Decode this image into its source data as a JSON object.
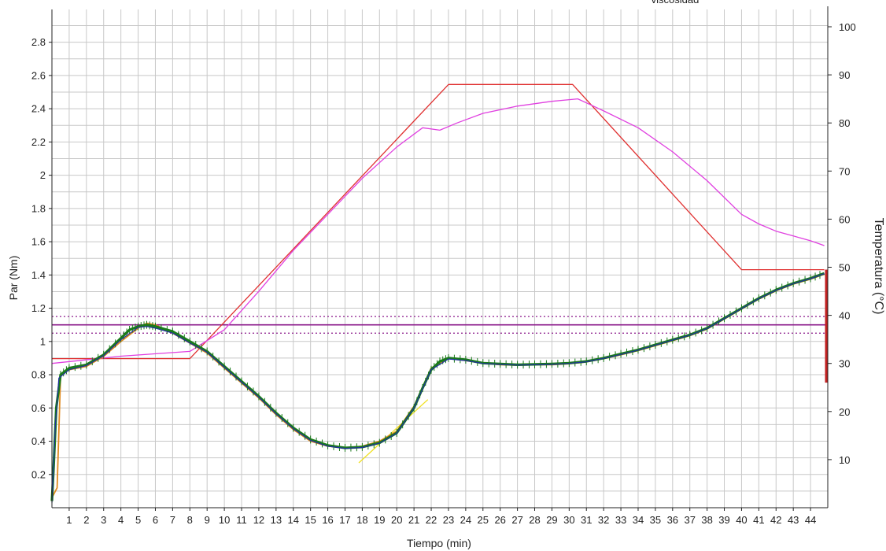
{
  "chart_data": {
    "type": "line",
    "top_label": "viscosidad",
    "xlabel": "Tiempo (min)",
    "ylabel_left": "Par (Nm)",
    "ylabel_right": "Temperatura  (°C)",
    "xlim": [
      0,
      45
    ],
    "ylim_left": [
      0,
      2.8
    ],
    "ylim_right": [
      0,
      104
    ],
    "grid": true,
    "x_ticks": [
      1,
      2,
      3,
      4,
      5,
      6,
      7,
      8,
      9,
      10,
      11,
      12,
      13,
      14,
      15,
      16,
      17,
      18,
      19,
      20,
      21,
      22,
      23,
      24,
      25,
      26,
      27,
      28,
      29,
      30,
      31,
      32,
      33,
      34,
      35,
      36,
      37,
      38,
      39,
      40,
      41,
      42,
      43,
      44
    ],
    "x_tick_labels": [
      "1",
      "2",
      "3",
      "4",
      "5",
      "6",
      "7",
      "8",
      "9",
      "10",
      "11",
      "12",
      "13",
      "14",
      "15",
      "16",
      "17",
      "18",
      "19",
      "20",
      "21",
      "22",
      "23",
      "24",
      "25",
      "26",
      "27",
      "28",
      "29",
      "30",
      "31",
      "32",
      "33",
      "34",
      "35",
      "36",
      "37",
      "38",
      "39",
      "40",
      "41",
      "42",
      "43",
      "44"
    ],
    "left_ticks": [
      0.2,
      0.4,
      0.6,
      0.8,
      1,
      1.2,
      1.4,
      1.6,
      1.8,
      2,
      2.2,
      2.4,
      2.6,
      2.8
    ],
    "left_tick_labels": [
      "0.2",
      "0.4",
      "0.6",
      "0.8",
      "1",
      "1.2",
      "1.4",
      "1.6",
      "1.8",
      "2",
      "2.2",
      "2.4",
      "2.6",
      "2.8"
    ],
    "right_ticks": [
      10,
      20,
      30,
      40,
      50,
      60,
      70,
      80,
      90,
      100
    ],
    "right_tick_labels": [
      "10",
      "20",
      "30",
      "40",
      "50",
      "60",
      "70",
      "80",
      "90",
      "100"
    ],
    "reference_lines": [
      {
        "axis": "left",
        "y": 1.1,
        "style": "solid",
        "color": "#8b1a8b"
      },
      {
        "axis": "left",
        "y": 1.15,
        "style": "dotted",
        "color": "#8b1a8b"
      },
      {
        "axis": "left",
        "y": 1.05,
        "style": "dotted",
        "color": "#8b1a8b"
      }
    ],
    "series": [
      {
        "key": "temp_setpoint",
        "axis": "right",
        "color": "#e03030",
        "points": [
          [
            0,
            31
          ],
          [
            8,
            31
          ],
          [
            23,
            88
          ],
          [
            30.2,
            88
          ],
          [
            40,
            49.5
          ],
          [
            44.8,
            49.5
          ]
        ]
      },
      {
        "key": "temp_measured",
        "axis": "right",
        "color": "#e040e0",
        "points": [
          [
            0,
            30
          ],
          [
            4,
            31.5
          ],
          [
            8,
            32.5
          ],
          [
            10,
            37
          ],
          [
            12,
            45
          ],
          [
            14,
            53.5
          ],
          [
            16,
            61
          ],
          [
            18,
            68.5
          ],
          [
            20,
            75
          ],
          [
            21.5,
            79
          ],
          [
            22.5,
            78.5
          ],
          [
            23.5,
            80
          ],
          [
            25,
            82
          ],
          [
            27,
            83.5
          ],
          [
            29,
            84.5
          ],
          [
            30.5,
            85
          ],
          [
            32,
            82.5
          ],
          [
            34,
            79
          ],
          [
            36,
            74
          ],
          [
            38,
            68
          ],
          [
            40,
            61
          ],
          [
            41,
            59
          ],
          [
            42,
            57.5
          ],
          [
            43,
            56.5
          ],
          [
            44,
            55.5
          ],
          [
            44.8,
            54.5
          ]
        ]
      },
      {
        "key": "torque_main",
        "axis": "left",
        "color": "#1a7a1a",
        "points": [
          [
            0,
            0.04
          ],
          [
            0.1,
            0.25
          ],
          [
            0.25,
            0.6
          ],
          [
            0.5,
            0.8
          ],
          [
            1,
            0.84
          ],
          [
            2,
            0.86
          ],
          [
            3,
            0.92
          ],
          [
            4,
            1.02
          ],
          [
            4.5,
            1.07
          ],
          [
            5,
            1.09
          ],
          [
            5.5,
            1.1
          ],
          [
            6,
            1.09
          ],
          [
            7,
            1.06
          ],
          [
            8,
            1.0
          ],
          [
            9,
            0.94
          ],
          [
            10,
            0.85
          ],
          [
            11,
            0.76
          ],
          [
            12,
            0.67
          ],
          [
            13,
            0.57
          ],
          [
            14,
            0.48
          ],
          [
            15,
            0.41
          ],
          [
            16,
            0.375
          ],
          [
            17,
            0.36
          ],
          [
            18,
            0.365
          ],
          [
            19,
            0.39
          ],
          [
            20,
            0.45
          ],
          [
            21,
            0.6
          ],
          [
            21.5,
            0.72
          ],
          [
            22,
            0.83
          ],
          [
            22.5,
            0.88
          ],
          [
            23,
            0.9
          ],
          [
            24,
            0.89
          ],
          [
            25,
            0.87
          ],
          [
            26,
            0.865
          ],
          [
            27,
            0.86
          ],
          [
            28,
            0.862
          ],
          [
            29,
            0.865
          ],
          [
            30,
            0.87
          ],
          [
            31,
            0.88
          ],
          [
            32,
            0.9
          ],
          [
            33,
            0.925
          ],
          [
            34,
            0.95
          ],
          [
            35,
            0.98
          ],
          [
            36,
            1.01
          ],
          [
            37,
            1.04
          ],
          [
            38,
            1.08
          ],
          [
            39,
            1.14
          ],
          [
            40,
            1.2
          ],
          [
            41,
            1.26
          ],
          [
            42,
            1.31
          ],
          [
            43,
            1.35
          ],
          [
            44,
            1.38
          ],
          [
            44.8,
            1.41
          ]
        ]
      },
      {
        "key": "torque_orange",
        "axis": "left",
        "color": "#e08a20",
        "points": [
          [
            0,
            0.06
          ],
          [
            0.3,
            0.12
          ],
          [
            0.5,
            0.8
          ],
          [
            1,
            0.83
          ],
          [
            2,
            0.85
          ],
          [
            3,
            0.91
          ],
          [
            4,
            1.0
          ],
          [
            5,
            1.08
          ],
          [
            5.5,
            1.11
          ],
          [
            6,
            1.1
          ],
          [
            7,
            1.05
          ],
          [
            8,
            0.99
          ],
          [
            9,
            0.93
          ],
          [
            10,
            0.84
          ],
          [
            11,
            0.75
          ],
          [
            12,
            0.66
          ],
          [
            13,
            0.56
          ],
          [
            14,
            0.47
          ],
          [
            15,
            0.4
          ],
          [
            16,
            0.37
          ],
          [
            17,
            0.36
          ],
          [
            18,
            0.37
          ],
          [
            19,
            0.4
          ],
          [
            20,
            0.46
          ],
          [
            21,
            0.61
          ],
          [
            22,
            0.84
          ],
          [
            23,
            0.9
          ],
          [
            24,
            0.885
          ],
          [
            25,
            0.87
          ],
          [
            26,
            0.86
          ],
          [
            27,
            0.857
          ],
          [
            28,
            0.86
          ],
          [
            29,
            0.86
          ],
          [
            30,
            0.866
          ],
          [
            31,
            0.877
          ],
          [
            32,
            0.897
          ],
          [
            33,
            0.92
          ],
          [
            34,
            0.945
          ],
          [
            35,
            0.975
          ],
          [
            36,
            1.005
          ],
          [
            37,
            1.035
          ],
          [
            38,
            1.075
          ],
          [
            39,
            1.135
          ],
          [
            40,
            1.195
          ],
          [
            41,
            1.255
          ],
          [
            42,
            1.305
          ],
          [
            43,
            1.345
          ],
          [
            44,
            1.375
          ],
          [
            44.8,
            1.405
          ]
        ]
      },
      {
        "key": "torque_blue",
        "axis": "left",
        "color": "#2030a0",
        "points": [
          [
            0,
            0.03
          ],
          [
            0.2,
            0.5
          ],
          [
            0.4,
            0.78
          ],
          [
            1,
            0.83
          ],
          [
            2,
            0.855
          ],
          [
            3,
            0.915
          ],
          [
            4,
            1.01
          ],
          [
            5,
            1.085
          ],
          [
            5.5,
            1.09
          ],
          [
            6,
            1.08
          ],
          [
            7,
            1.05
          ],
          [
            8,
            0.99
          ],
          [
            9,
            0.935
          ],
          [
            10,
            0.845
          ],
          [
            11,
            0.755
          ],
          [
            12,
            0.665
          ],
          [
            13,
            0.565
          ],
          [
            14,
            0.475
          ],
          [
            15,
            0.405
          ],
          [
            16,
            0.37
          ],
          [
            17,
            0.357
          ],
          [
            18,
            0.362
          ],
          [
            19,
            0.388
          ],
          [
            20,
            0.448
          ],
          [
            21,
            0.6
          ],
          [
            22,
            0.83
          ],
          [
            23,
            0.895
          ],
          [
            24,
            0.885
          ],
          [
            25,
            0.868
          ],
          [
            26,
            0.862
          ],
          [
            27,
            0.858
          ],
          [
            28,
            0.86
          ],
          [
            29,
            0.862
          ],
          [
            30,
            0.868
          ],
          [
            31,
            0.878
          ],
          [
            32,
            0.898
          ],
          [
            33,
            0.922
          ],
          [
            34,
            0.948
          ],
          [
            35,
            0.978
          ],
          [
            36,
            1.008
          ],
          [
            37,
            1.038
          ],
          [
            38,
            1.078
          ],
          [
            39,
            1.138
          ],
          [
            40,
            1.198
          ],
          [
            41,
            1.258
          ],
          [
            42,
            1.308
          ],
          [
            43,
            1.348
          ],
          [
            44,
            1.378
          ],
          [
            44.8,
            1.408
          ]
        ]
      },
      {
        "key": "tangent_line",
        "axis": "left",
        "color": "#f0e020",
        "points": [
          [
            17.8,
            0.27
          ],
          [
            21.8,
            0.65
          ]
        ]
      }
    ]
  }
}
